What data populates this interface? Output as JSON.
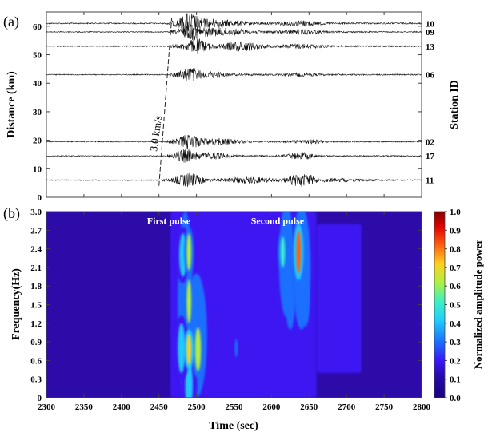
{
  "chart_data": [
    {
      "panel_label": "(a)",
      "type": "line",
      "title": "",
      "xlabel": "",
      "ylabel": "Distance (km)",
      "ylabel_right": "Station ID",
      "xlim": [
        2300,
        2800
      ],
      "ylim": [
        0,
        65
      ],
      "xticks": [
        2300,
        2350,
        2400,
        2450,
        2500,
        2550,
        2600,
        2650,
        2700,
        2750,
        2800
      ],
      "yticks": [
        0,
        10,
        20,
        30,
        40,
        50,
        60
      ],
      "ytick_labels": [
        "0",
        "10",
        "20",
        "30",
        "40",
        "50",
        "60"
      ],
      "grid": false,
      "annotation": {
        "text": "3.0 km/s",
        "line": [
          [
            2450,
            4
          ],
          [
            2467,
            63
          ]
        ],
        "style": "dashed"
      },
      "series": [
        {
          "name": "10",
          "distance_km": 61,
          "onset": 2460,
          "amp": 1.2,
          "pulses": [
            [
              2490,
              12,
              1.0
            ],
            [
              2520,
              40,
              0.45
            ],
            [
              2640,
              25,
              0.3
            ]
          ]
        },
        {
          "name": "09",
          "distance_km": 58,
          "onset": 2465,
          "amp": 1.0,
          "pulses": [
            [
              2495,
              14,
              0.9
            ],
            [
              2530,
              40,
              0.5
            ],
            [
              2640,
              25,
              0.3
            ]
          ]
        },
        {
          "name": "13",
          "distance_km": 53,
          "onset": 2465,
          "amp": 1.1,
          "pulses": [
            [
              2500,
              15,
              0.9
            ],
            [
              2560,
              25,
              0.6
            ],
            [
              2640,
              30,
              0.25
            ]
          ]
        },
        {
          "name": "06",
          "distance_km": 43,
          "onset": 2465,
          "amp": 1.0,
          "pulses": [
            [
              2490,
              14,
              1.0
            ],
            [
              2520,
              20,
              0.35
            ],
            [
              2640,
              20,
              0.2
            ]
          ]
        },
        {
          "name": "02",
          "distance_km": 19.5,
          "onset": 2460,
          "amp": 1.0,
          "pulses": [
            [
              2490,
              15,
              1.0
            ],
            [
              2530,
              25,
              0.4
            ],
            [
              2650,
              20,
              0.25
            ]
          ]
        },
        {
          "name": "17",
          "distance_km": 14.5,
          "onset": 2460,
          "amp": 0.9,
          "pulses": [
            [
              2485,
              14,
              1.0
            ],
            [
              2520,
              20,
              0.5
            ],
            [
              2640,
              18,
              0.55
            ]
          ]
        },
        {
          "name": "11",
          "distance_km": 6,
          "onset": 2455,
          "amp": 1.0,
          "pulses": [
            [
              2490,
              16,
              1.0
            ],
            [
              2570,
              30,
              0.4
            ],
            [
              2640,
              18,
              0.95
            ],
            [
              2690,
              40,
              0.2
            ]
          ]
        }
      ]
    },
    {
      "panel_label": "(b)",
      "type": "heatmap",
      "xlabel": "Time (sec)",
      "ylabel": "Frequency(Hz)",
      "colorbar_label": "Normalized amplitude power",
      "xlim": [
        2300,
        2800
      ],
      "ylim": [
        0,
        3.0
      ],
      "xticks": [
        2300,
        2350,
        2400,
        2450,
        2500,
        2550,
        2600,
        2650,
        2700,
        2750,
        2800
      ],
      "xtick_labels": [
        "2300",
        "2350",
        "2400",
        "2450",
        "2500",
        "2550",
        "2600",
        "2650",
        "2700",
        "2750",
        "2800"
      ],
      "yticks": [
        0,
        0.3,
        0.6,
        0.9,
        1.2,
        1.5,
        1.8,
        2.1,
        2.4,
        2.7,
        3.0
      ],
      "ytick_labels": [
        "0",
        "0.3",
        "0.6",
        "0.9",
        "1.2",
        "1.5",
        "1.8",
        "2.1",
        "2.4",
        "2.7",
        "3.0"
      ],
      "colorbar_ticks": [
        "0.0",
        "0.1",
        "0.2",
        "0.3",
        "0.4",
        "0.5",
        "0.6",
        "0.7",
        "0.8",
        "0.9",
        "1.0"
      ],
      "colorbar_range": [
        0,
        1
      ],
      "background_power": 0.05,
      "annotations": [
        {
          "text": "First pulse",
          "t": 2495,
          "f": 2.85
        },
        {
          "text": "Second pulse",
          "t": 2640,
          "f": 2.85
        }
      ],
      "regions": [
        {
          "t": [
            2465,
            2660
          ],
          "f": [
            0,
            3.0
          ],
          "power": 0.12
        },
        {
          "t": [
            2660,
            2720
          ],
          "f": [
            0.4,
            2.8
          ],
          "power": 0.12
        }
      ],
      "blobs": [
        {
          "t": 2485,
          "f": 1.5,
          "dt": 10,
          "df": 1.5,
          "power": 0.22
        },
        {
          "t": 2500,
          "f": 1.0,
          "dt": 14,
          "df": 1.0,
          "power": 0.25
        },
        {
          "t": 2482,
          "f": 2.3,
          "dt": 5,
          "df": 0.35,
          "power": 0.35
        },
        {
          "t": 2490,
          "f": 2.35,
          "dt": 3,
          "df": 0.3,
          "power": 0.55
        },
        {
          "t": 2490,
          "f": 1.55,
          "dt": 3,
          "df": 0.35,
          "power": 0.6
        },
        {
          "t": 2480,
          "f": 0.8,
          "dt": 5,
          "df": 0.4,
          "power": 0.4
        },
        {
          "t": 2490,
          "f": 0.78,
          "dt": 3,
          "df": 0.25,
          "power": 0.7
        },
        {
          "t": 2502,
          "f": 0.78,
          "dt": 4,
          "df": 0.35,
          "power": 0.55
        },
        {
          "t": 2490,
          "f": 0.2,
          "dt": 5,
          "df": 0.4,
          "power": 0.35
        },
        {
          "t": 2620,
          "f": 2.2,
          "dt": 10,
          "df": 0.9,
          "power": 0.3
        },
        {
          "t": 2640,
          "f": 2.1,
          "dt": 12,
          "df": 1.0,
          "power": 0.3
        },
        {
          "t": 2636,
          "f": 2.35,
          "dt": 3,
          "df": 0.35,
          "power": 0.8
        },
        {
          "t": 2615,
          "f": 2.35,
          "dt": 3,
          "df": 0.25,
          "power": 0.45
        },
        {
          "t": 2625,
          "f": 1.5,
          "dt": 6,
          "df": 0.4,
          "power": 0.3
        },
        {
          "t": 2645,
          "f": 1.55,
          "dt": 6,
          "df": 0.4,
          "power": 0.3
        },
        {
          "t": 2553,
          "f": 0.8,
          "dt": 2,
          "df": 0.15,
          "power": 0.25
        }
      ]
    }
  ]
}
